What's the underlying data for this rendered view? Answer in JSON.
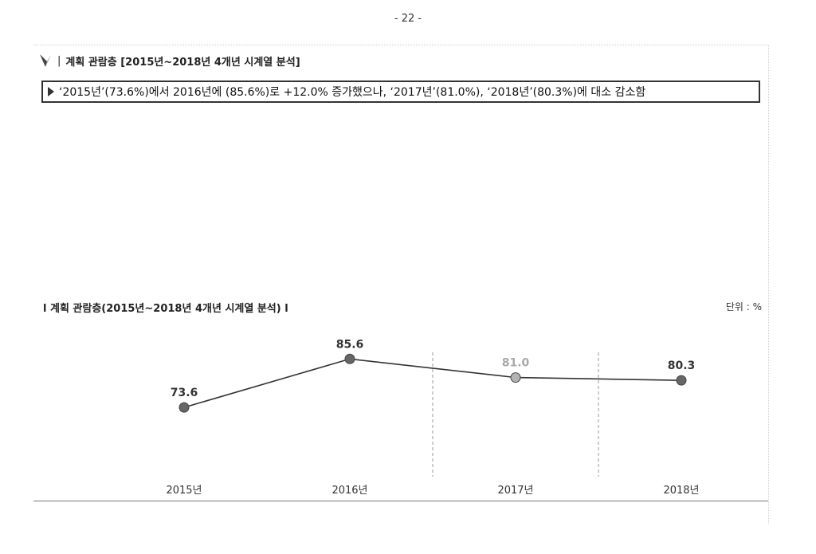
{
  "page": {
    "number": "- 22 -"
  },
  "section": {
    "separator": "|",
    "title": "계획 관람층 [2015년~2018년 4개년 시계열 분석]",
    "icon": "pen-nib-icon"
  },
  "summary": {
    "text": "‘2015년’(73.6%)에서 2016년에 (85.6%)로 +12.0% 증가했으나, ‘2017년’(81.0%), ‘2018년’(80.3%)에 대소 감소함"
  },
  "chart_title": "l 계획 관람층(2015년~2018년  4개년 시계열 분석)  l",
  "unit_label": "단위 : %",
  "chart_data": {
    "type": "line",
    "categories": [
      "2015년",
      "2016년",
      "2017년",
      "2018년"
    ],
    "values": [
      73.6,
      85.6,
      81.0,
      80.3
    ],
    "data_labels": [
      "73.6",
      "85.6",
      "81.0",
      "80.3"
    ],
    "title": "계획 관람층(2015년~2018년  4개년 시계열 분석)",
    "unit": "%",
    "ylim": [
      60,
      90
    ],
    "point_colors": [
      "#666666",
      "#666666",
      "#b3b3b3",
      "#666666"
    ],
    "label_colors": [
      "#333333",
      "#333333",
      "#a8a8a8",
      "#333333"
    ],
    "line_color": "#333333",
    "divider_after_categories": [
      1,
      2
    ]
  }
}
